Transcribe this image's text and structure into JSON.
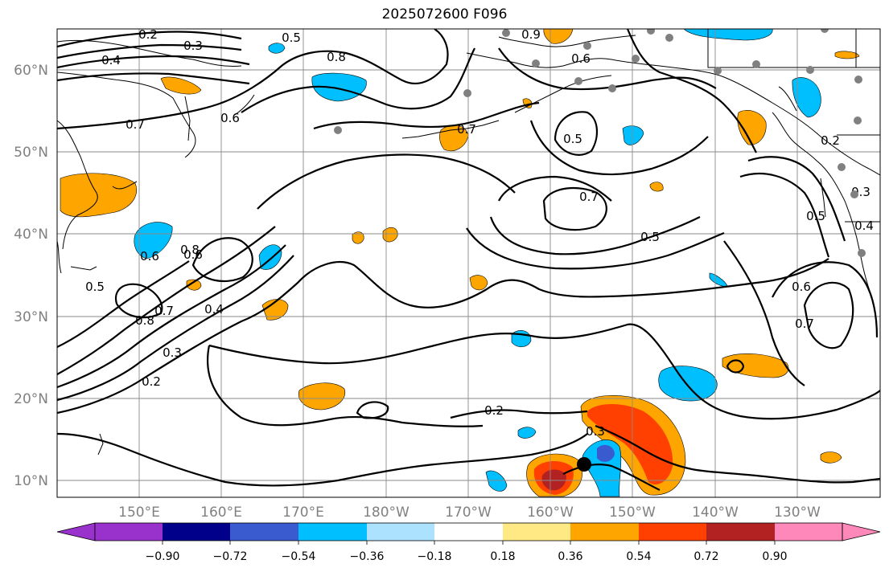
{
  "title": "2025072600 F096",
  "map": {
    "lat_ticks": [
      "60°N",
      "50°N",
      "40°N",
      "30°N",
      "20°N",
      "10°N"
    ],
    "lon_ticks": [
      "150°E",
      "160°E",
      "170°E",
      "180°W",
      "170°W",
      "160°W",
      "150°W",
      "140°W",
      "130°W"
    ],
    "contour_labels": [
      {
        "v": "0.2"
      },
      {
        "v": "0.3"
      },
      {
        "v": "0.4"
      },
      {
        "v": "0.6"
      },
      {
        "v": "0.5"
      },
      {
        "v": "0.8"
      },
      {
        "v": "0.7"
      },
      {
        "v": "0.6"
      },
      {
        "v": "0.7"
      },
      {
        "v": "0.5"
      },
      {
        "v": "0.7"
      },
      {
        "v": "0.5"
      },
      {
        "v": "0.6"
      },
      {
        "v": "0.8"
      },
      {
        "v": "0.8"
      },
      {
        "v": "0.7"
      },
      {
        "v": "0.4"
      },
      {
        "v": "0.3"
      },
      {
        "v": "0.2"
      },
      {
        "v": "0.2"
      },
      {
        "v": "0.3"
      },
      {
        "v": "0.6"
      },
      {
        "v": "0.7"
      },
      {
        "v": "0.5"
      },
      {
        "v": "0.3"
      },
      {
        "v": "0.4"
      },
      {
        "v": "0.2"
      },
      {
        "v": "0.9"
      },
      {
        "v": "0.6"
      },
      {
        "v": "0.5"
      }
    ]
  },
  "colorbar": {
    "ticks": [
      "−0.90",
      "−0.72",
      "−0.54",
      "−0.36",
      "−0.18",
      "0.18",
      "0.36",
      "0.54",
      "0.72",
      "0.90"
    ],
    "colors": {
      "under": "#9932cc",
      "c1": "#00008b",
      "c2": "#3a5bcf",
      "c3": "#00bfff",
      "c4": "#ade2ff",
      "c5": "#ffffff",
      "c6": "#ffe985",
      "c7": "#ffa500",
      "c8": "#ff4000",
      "c9": "#b22222",
      "over": "#ff88bb"
    }
  }
}
